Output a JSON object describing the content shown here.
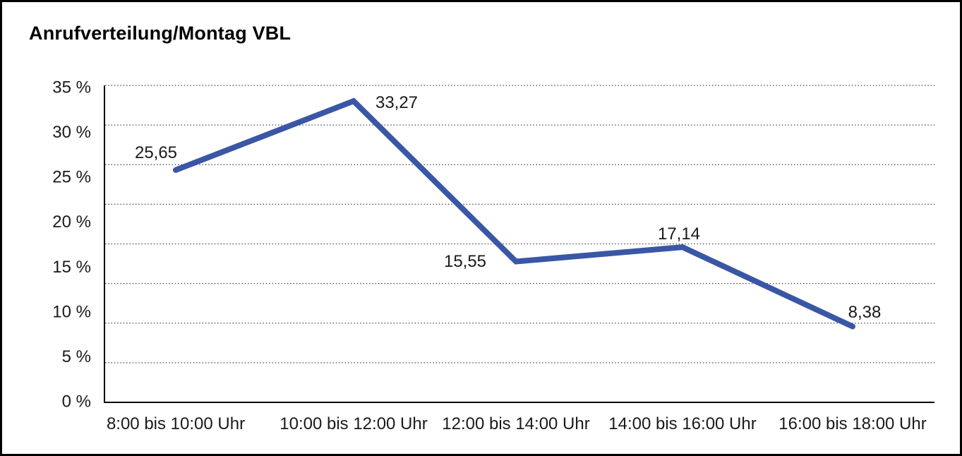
{
  "window": {
    "background": "#ffffff",
    "border_color": "#000000"
  },
  "chart_data": {
    "type": "line",
    "title": "Anrufverteilung/Montag VBL",
    "categories": [
      "8:00 bis 10:00 Uhr",
      "10:00 bis 12:00 Uhr",
      "12:00 bis 14:00 Uhr",
      "14:00 bis 16:00 Uhr",
      "16:00 bis 18:00 Uhr"
    ],
    "values": [
      25.65,
      33.27,
      15.55,
      17.14,
      8.38
    ],
    "point_labels": [
      "25,65",
      "33,27",
      "15,55",
      "17,14",
      "8,38"
    ],
    "y_tick_labels": [
      "35 %",
      "30 %",
      "25 %",
      "20 %",
      "15 %",
      "10 %",
      "5 %",
      "0 %"
    ],
    "ylim": [
      0,
      35
    ],
    "xlabel": "",
    "ylabel": "",
    "legend": "none",
    "grid": {
      "horizontal": true,
      "style": "dotted",
      "color": "#3c3c3c"
    },
    "line_color": "#3A57A5",
    "axis_color": "#000000",
    "label_color": "#1a1a1a"
  }
}
